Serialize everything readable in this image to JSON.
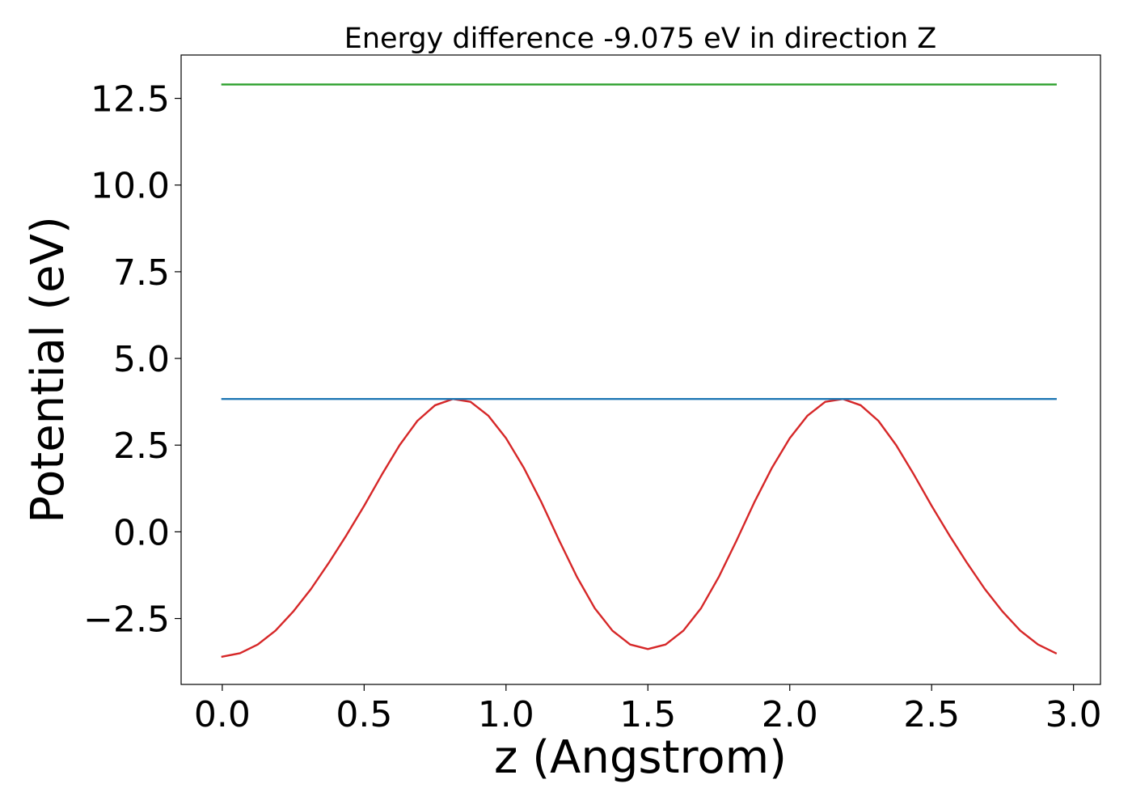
{
  "chart_data": {
    "type": "line",
    "title": "Energy difference -9.075 eV in direction Z",
    "xlabel": "z (Angstrom)",
    "ylabel": "Potential (eV)",
    "xlim": [
      -0.145,
      3.095
    ],
    "ylim": [
      -4.4,
      13.75
    ],
    "x_ticks": [
      0.0,
      0.5,
      1.0,
      1.5,
      2.0,
      2.5,
      3.0
    ],
    "x_tick_labels": [
      "0.0",
      "0.5",
      "1.0",
      "1.5",
      "2.0",
      "2.5",
      "3.0"
    ],
    "y_ticks": [
      -2.5,
      0.0,
      2.5,
      5.0,
      7.5,
      10.0,
      12.5
    ],
    "y_tick_labels": [
      "−2.5",
      "0.0",
      "2.5",
      "5.0",
      "7.5",
      "10.0",
      "12.5"
    ],
    "grid": false,
    "legend": "none",
    "series": [
      {
        "color": "#d62728",
        "x": [
          0.0,
          0.0625,
          0.125,
          0.1875,
          0.25,
          0.3125,
          0.375,
          0.4375,
          0.5,
          0.5625,
          0.625,
          0.6875,
          0.75,
          0.8125,
          0.875,
          0.9375,
          1.0,
          1.0625,
          1.125,
          1.1875,
          1.25,
          1.3125,
          1.375,
          1.4375,
          1.5,
          1.5625,
          1.625,
          1.6875,
          1.75,
          1.8125,
          1.875,
          1.9375,
          2.0,
          2.0625,
          2.125,
          2.1875,
          2.25,
          2.3125,
          2.375,
          2.4375,
          2.5,
          2.5625,
          2.625,
          2.6875,
          2.75,
          2.8125,
          2.875,
          2.9375
        ],
        "y": [
          -3.6,
          -3.5,
          -3.25,
          -2.85,
          -2.3,
          -1.65,
          -0.9,
          -0.1,
          0.75,
          1.65,
          2.5,
          3.2,
          3.65,
          3.83,
          3.75,
          3.35,
          2.7,
          1.85,
          0.85,
          -0.25,
          -1.3,
          -2.2,
          -2.85,
          -3.25,
          -3.38,
          -3.25,
          -2.85,
          -2.2,
          -1.3,
          -0.25,
          0.85,
          1.85,
          2.7,
          3.35,
          3.75,
          3.83,
          3.65,
          3.2,
          2.5,
          1.65,
          0.75,
          -0.1,
          -0.9,
          -1.65,
          -2.3,
          -2.85,
          -3.25,
          -3.5
        ]
      },
      {
        "color": "#1f77b4",
        "x": [
          0.0,
          2.9375
        ],
        "y": [
          3.83,
          3.83
        ]
      },
      {
        "color": "#2ca02c",
        "x": [
          0.0,
          2.9375
        ],
        "y": [
          12.9,
          12.9
        ]
      }
    ]
  }
}
